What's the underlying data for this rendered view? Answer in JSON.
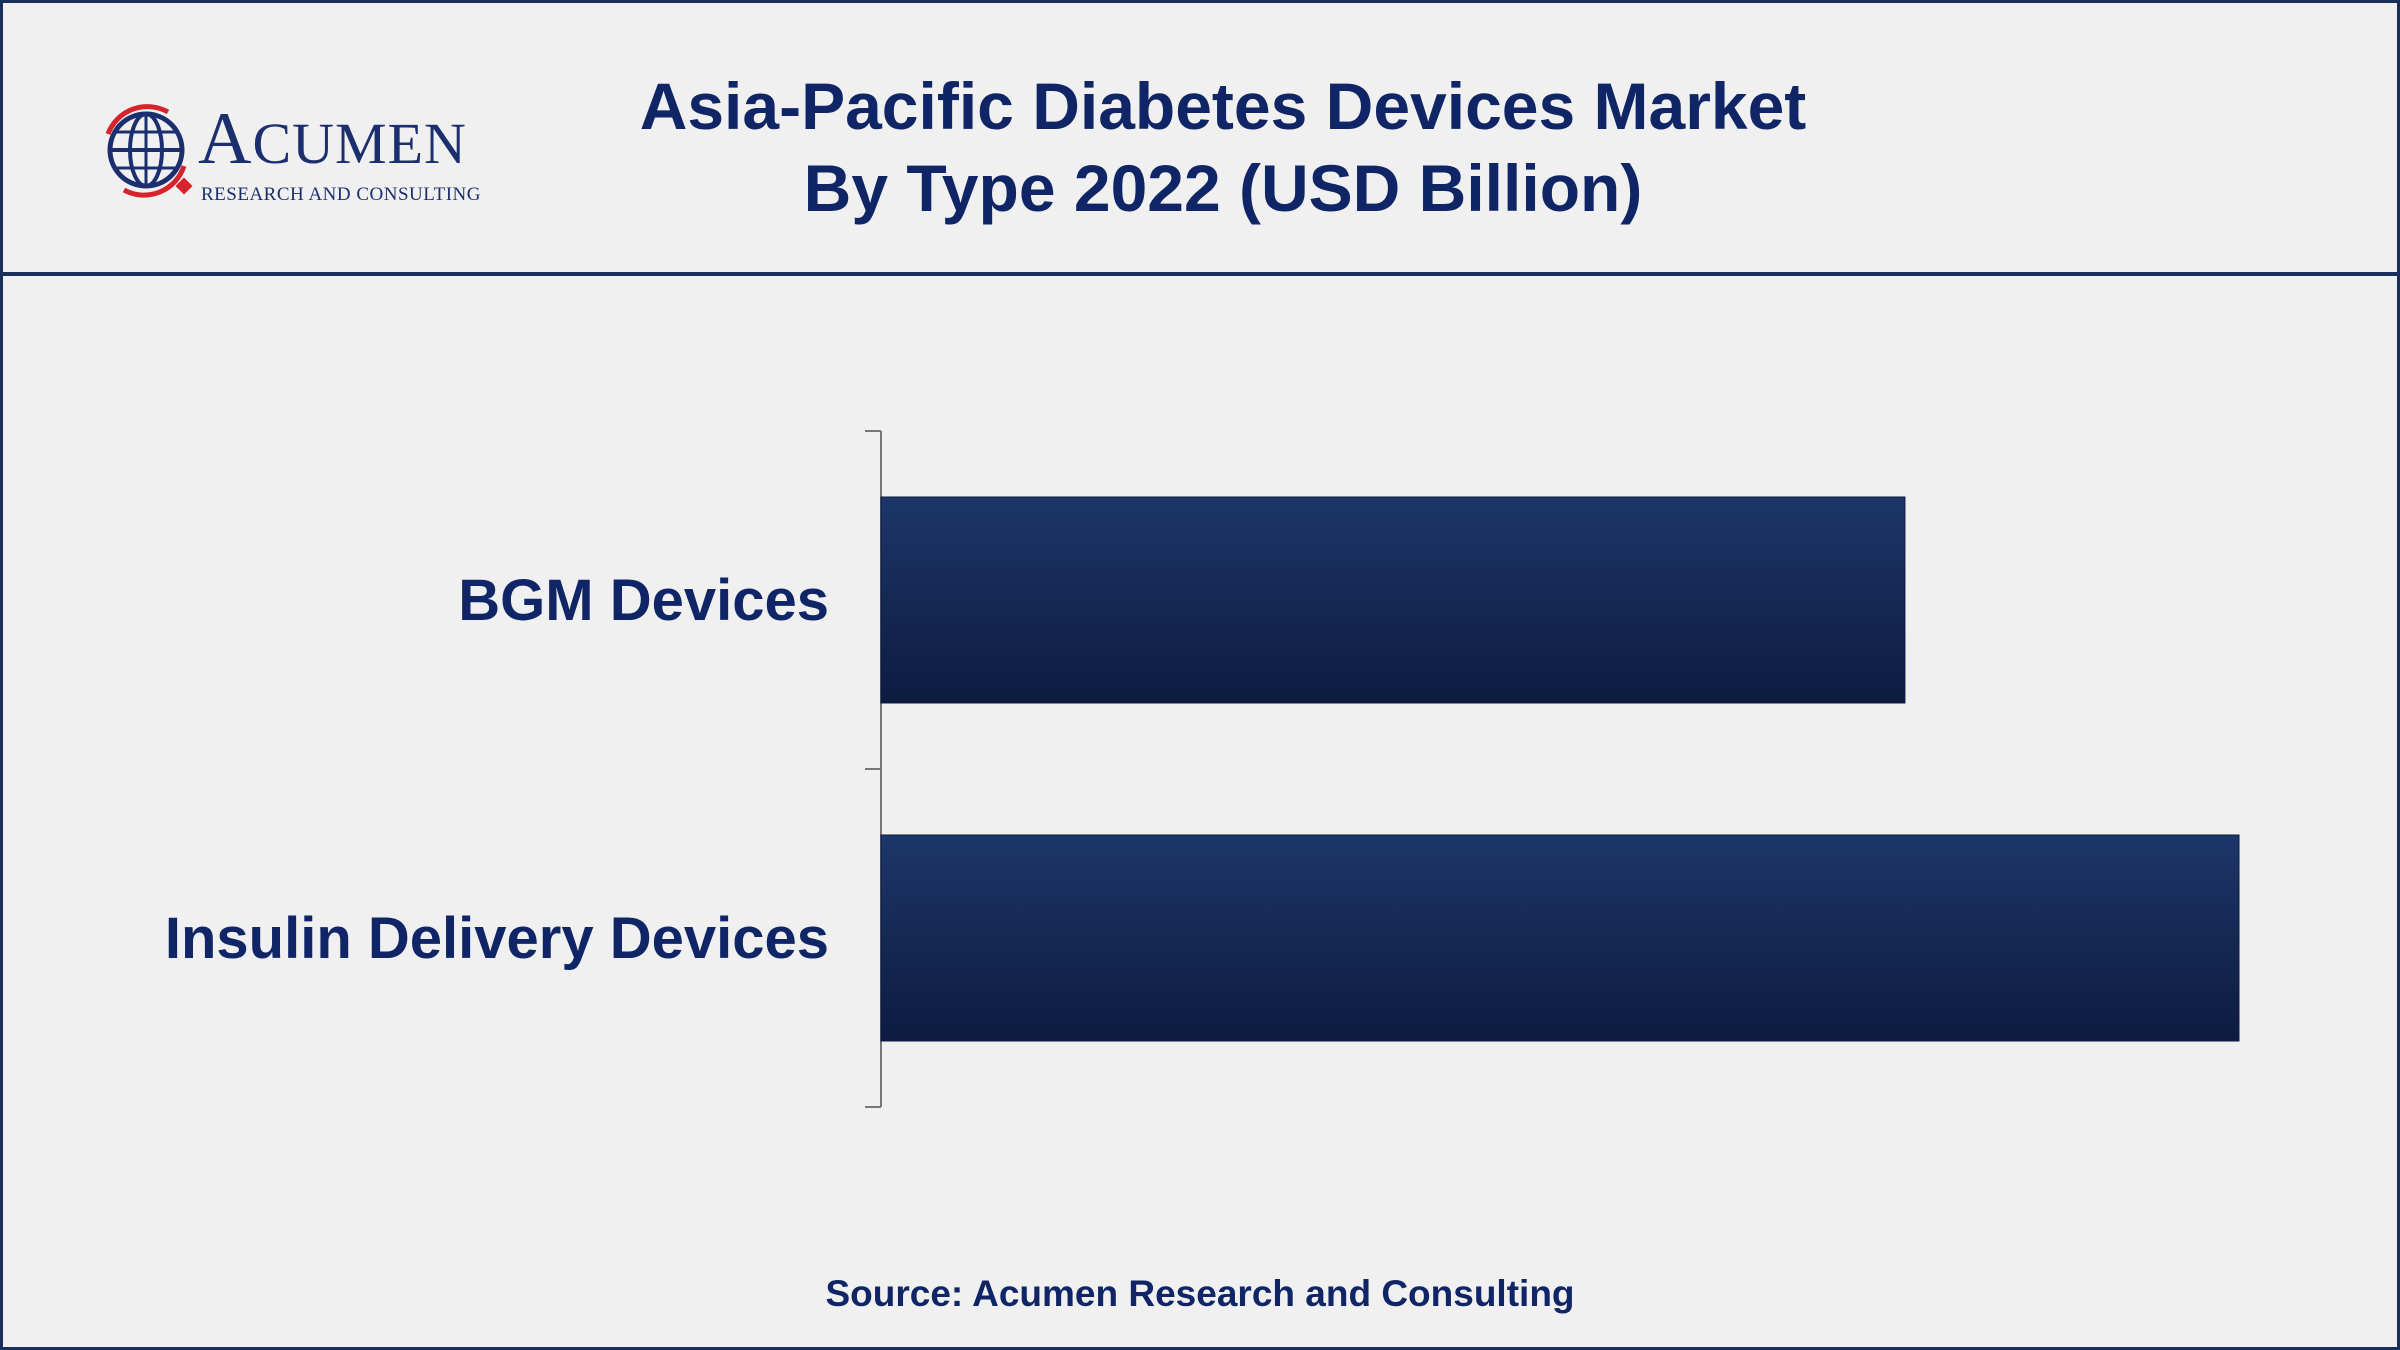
{
  "header": {
    "title_line1": "Asia-Pacific Diabetes Devices Market",
    "title_line2": "By Type 2022 (USD Billion)"
  },
  "logo": {
    "word_first": "A",
    "word_rest": "CUMEN",
    "subtitle": "RESEARCH AND CONSULTING",
    "icon": "globe-icon"
  },
  "colors": {
    "brand_navy": "#0f2565",
    "bar_top": "#1d3669",
    "bar_bottom": "#0d1b40",
    "logo_red": "#d7232c"
  },
  "chart_data": {
    "type": "bar",
    "orientation": "horizontal",
    "title": "Asia-Pacific Diabetes Devices Market By Type 2022 (USD Billion)",
    "categories": [
      "BGM Devices",
      "Insulin Delivery Devices"
    ],
    "values": [
      0.754,
      1.0
    ],
    "grid": false,
    "legend": "none"
  },
  "source": "Source: Acumen Research and Consulting"
}
